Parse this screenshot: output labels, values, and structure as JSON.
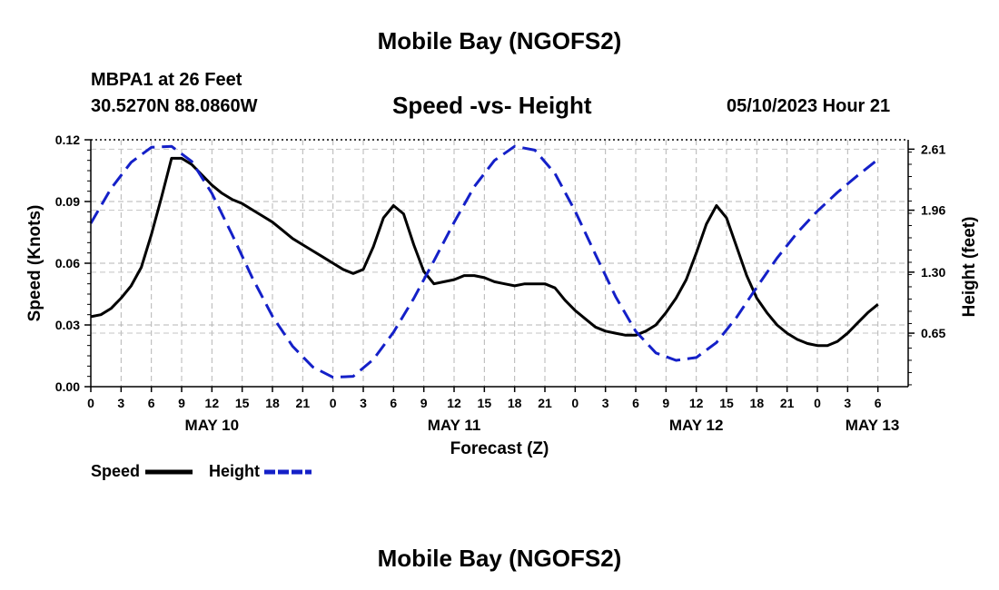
{
  "header": {
    "title": "Mobile Bay (NGOFS2)",
    "station_name": "MBPA1 at 26 Feet",
    "station_coords": "30.5270N  88.0860W",
    "subtitle": "Speed -vs- Height",
    "datetime": "05/10/2023 Hour 21"
  },
  "footer": {
    "title": "Mobile Bay (NGOFS2)"
  },
  "legend": {
    "speed_label": "Speed",
    "height_label": "Height"
  },
  "chart_data": {
    "type": "line",
    "title": "Speed -vs- Height",
    "xlabel": "Forecast (Z)",
    "ylabel": "Speed (Knots)",
    "y2label": "Height (feet)",
    "x_unit": "hours",
    "x_range": [
      0,
      81
    ],
    "x_ticks": [
      {
        "h": 0,
        "label": "0"
      },
      {
        "h": 3,
        "label": "3"
      },
      {
        "h": 6,
        "label": "6"
      },
      {
        "h": 9,
        "label": "9"
      },
      {
        "h": 12,
        "label": "12"
      },
      {
        "h": 15,
        "label": "15"
      },
      {
        "h": 18,
        "label": "18"
      },
      {
        "h": 21,
        "label": "21"
      },
      {
        "h": 24,
        "label": "0"
      },
      {
        "h": 27,
        "label": "3"
      },
      {
        "h": 30,
        "label": "6"
      },
      {
        "h": 33,
        "label": "9"
      },
      {
        "h": 36,
        "label": "12"
      },
      {
        "h": 39,
        "label": "15"
      },
      {
        "h": 42,
        "label": "18"
      },
      {
        "h": 45,
        "label": "21"
      },
      {
        "h": 48,
        "label": "0"
      },
      {
        "h": 51,
        "label": "3"
      },
      {
        "h": 54,
        "label": "6"
      },
      {
        "h": 57,
        "label": "9"
      },
      {
        "h": 60,
        "label": "12"
      },
      {
        "h": 63,
        "label": "15"
      },
      {
        "h": 66,
        "label": "18"
      },
      {
        "h": 69,
        "label": "21"
      },
      {
        "h": 72,
        "label": "0"
      },
      {
        "h": 75,
        "label": "3"
      },
      {
        "h": 78,
        "label": "6"
      }
    ],
    "date_labels": [
      {
        "h": 12,
        "label": "MAY 10"
      },
      {
        "h": 36,
        "label": "MAY 11"
      },
      {
        "h": 60,
        "label": "MAY 12"
      },
      {
        "h": 77,
        "label": "MAY 13"
      }
    ],
    "ylim": [
      0,
      0.12
    ],
    "y_ticks": [
      "0.00",
      "0.03",
      "0.06",
      "0.09",
      "0.12"
    ],
    "y_tick_values": [
      0,
      0.03,
      0.06,
      0.09,
      0.12
    ],
    "y2lim": [
      0.08,
      2.71
    ],
    "y2_ticks": [
      "0.65",
      "1.30",
      "1.96",
      "2.61"
    ],
    "y2_tick_values": [
      0.65,
      1.3,
      1.96,
      2.61
    ],
    "grid": true,
    "series": [
      {
        "name": "Speed",
        "axis": "left",
        "color": "#000000",
        "style": "solid",
        "x": [
          0,
          1,
          2,
          3,
          4,
          5,
          6,
          7,
          8,
          9,
          10,
          11,
          12,
          13,
          14,
          15,
          16,
          17,
          18,
          19,
          20,
          21,
          22,
          23,
          24,
          25,
          26,
          27,
          28,
          29,
          30,
          31,
          32,
          33,
          34,
          35,
          36,
          37,
          38,
          39,
          40,
          41,
          42,
          43,
          44,
          45,
          46,
          47,
          48,
          49,
          50,
          51,
          52,
          53,
          54,
          55,
          56,
          57,
          58,
          59,
          60,
          61,
          62,
          63,
          64,
          65,
          66,
          67,
          68,
          69,
          70,
          71,
          72,
          73,
          74,
          75,
          76,
          77,
          78
        ],
        "values": [
          0.034,
          0.035,
          0.038,
          0.043,
          0.049,
          0.058,
          0.074,
          0.092,
          0.111,
          0.111,
          0.108,
          0.103,
          0.098,
          0.094,
          0.091,
          0.089,
          0.086,
          0.083,
          0.08,
          0.076,
          0.072,
          0.069,
          0.066,
          0.063,
          0.06,
          0.057,
          0.055,
          0.057,
          0.068,
          0.082,
          0.088,
          0.084,
          0.069,
          0.056,
          0.05,
          0.051,
          0.052,
          0.054,
          0.054,
          0.053,
          0.051,
          0.05,
          0.049,
          0.05,
          0.05,
          0.05,
          0.048,
          0.042,
          0.037,
          0.033,
          0.029,
          0.027,
          0.026,
          0.025,
          0.025,
          0.027,
          0.03,
          0.036,
          0.043,
          0.052,
          0.065,
          0.079,
          0.088,
          0.082,
          0.068,
          0.054,
          0.043,
          0.036,
          0.03,
          0.026,
          0.023,
          0.021,
          0.02,
          0.02,
          0.022,
          0.026,
          0.031,
          0.036,
          0.04
        ]
      },
      {
        "name": "Height",
        "axis": "right",
        "color": "#1420c8",
        "style": "dashed",
        "x": [
          0,
          2,
          4,
          6,
          8,
          10,
          12,
          14,
          16,
          18,
          20,
          22,
          24,
          26,
          28,
          30,
          32,
          34,
          36,
          38,
          40,
          42,
          44,
          46,
          48,
          50,
          52,
          54,
          56,
          58,
          60,
          62,
          64,
          66,
          68,
          70,
          72,
          74,
          76,
          78
        ],
        "values": [
          1.82,
          2.19,
          2.47,
          2.63,
          2.64,
          2.48,
          2.14,
          1.7,
          1.24,
          0.83,
          0.51,
          0.29,
          0.18,
          0.19,
          0.37,
          0.66,
          1.02,
          1.42,
          1.83,
          2.21,
          2.49,
          2.64,
          2.6,
          2.35,
          1.95,
          1.49,
          1.04,
          0.67,
          0.44,
          0.36,
          0.39,
          0.55,
          0.82,
          1.14,
          1.45,
          1.72,
          1.95,
          2.15,
          2.33,
          2.5
        ]
      }
    ]
  }
}
